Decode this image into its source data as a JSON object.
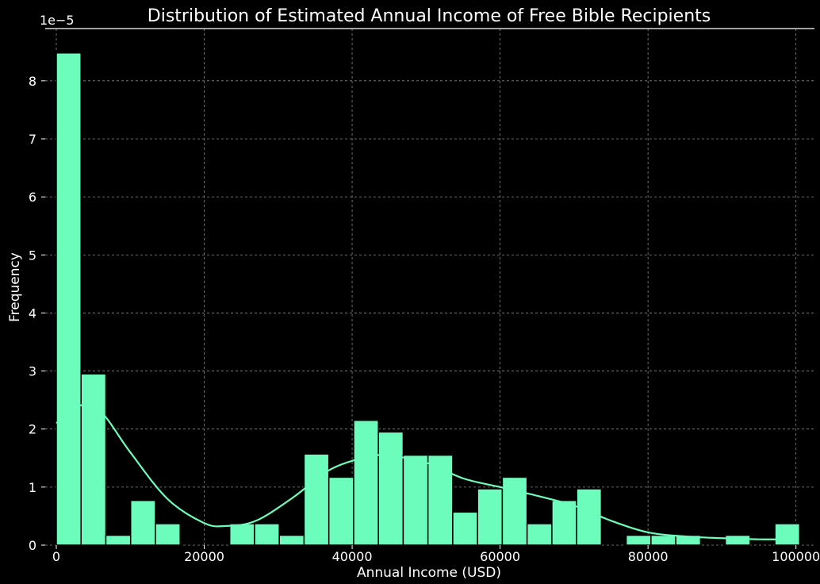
{
  "chart_data": {
    "type": "bar",
    "title": "Distribution of Estimated Annual Income of Free Bible Recipients",
    "xlabel": "Annual Income (USD)",
    "ylabel": "Frequency",
    "y_scale_label": "1e−5",
    "xlim": [
      -1500,
      102500
    ],
    "ylim": [
      0,
      8.9
    ],
    "x_ticks": [
      0,
      20000,
      40000,
      60000,
      80000,
      100000
    ],
    "x_tick_labels": [
      "0",
      "20000",
      "40000",
      "60000",
      "80000",
      "100000"
    ],
    "y_ticks": [
      0,
      1,
      2,
      3,
      4,
      5,
      6,
      7,
      8
    ],
    "y_tick_labels": [
      "0",
      "1",
      "2",
      "3",
      "4",
      "5",
      "6",
      "7",
      "8"
    ],
    "grid": true,
    "bin_start": 0,
    "bin_width": 3350,
    "values": [
      8.48,
      2.95,
      0.17,
      0.77,
      0.37,
      0,
      0,
      0.37,
      0.37,
      0.17,
      1.57,
      1.17,
      2.15,
      1.95,
      1.55,
      1.55,
      0.57,
      0.97,
      1.17,
      0.37,
      0.77,
      0.97,
      0,
      0.17,
      0.17,
      0.17,
      0,
      0.17,
      0,
      0.37
    ],
    "kde": {
      "x": [
        0,
        3000,
        6000,
        10000,
        15000,
        20000,
        23000,
        27000,
        32000,
        37000,
        42000,
        45000,
        50000,
        55000,
        60000,
        65000,
        70000,
        75000,
        80000,
        85000,
        90000,
        95000,
        100000
      ],
      "y": [
        2.1,
        2.4,
        2.3,
        1.6,
        0.8,
        0.38,
        0.33,
        0.42,
        0.82,
        1.3,
        1.52,
        1.54,
        1.42,
        1.15,
        1.0,
        0.85,
        0.68,
        0.42,
        0.22,
        0.15,
        0.12,
        0.1,
        0.1
      ]
    },
    "colors": {
      "bar": "#6cfcbc",
      "bar_edge": "#000000",
      "kde": "#6cfcbc",
      "grid": "#888888",
      "background": "#000000",
      "text": "#ffffff"
    }
  }
}
